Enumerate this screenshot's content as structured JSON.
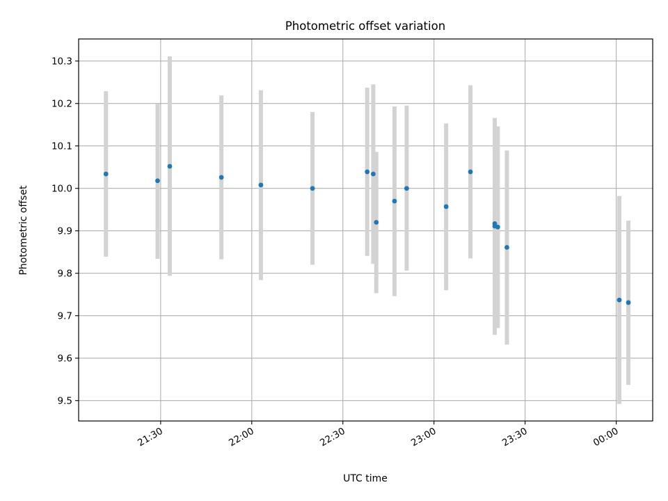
{
  "chart_data": {
    "type": "scatter",
    "title": "Photometric offset variation",
    "xlabel": "UTC time",
    "ylabel": "Photometric offset",
    "grid": true,
    "colors": {
      "points": "#1f77b4",
      "errorbars": "#d3d3d3",
      "grid": "#b0b0b0"
    },
    "x_ticks": [
      "21:30",
      "22:00",
      "22:30",
      "23:00",
      "23:30",
      "00:00"
    ],
    "y_ticks": [
      "9.5",
      "9.6",
      "9.7",
      "9.8",
      "9.9",
      "10.0",
      "10.1",
      "10.2",
      "10.3"
    ],
    "xlim": [
      "21:03",
      "00:12"
    ],
    "ylim": [
      9.452,
      10.352
    ],
    "points": [
      {
        "x": "21:12",
        "y": 10.034,
        "low": 9.839,
        "high": 10.229
      },
      {
        "x": "21:29",
        "y": 10.018,
        "low": 9.834,
        "high": 10.199
      },
      {
        "x": "21:33",
        "y": 10.052,
        "low": 9.794,
        "high": 10.311
      },
      {
        "x": "21:50",
        "y": 10.026,
        "low": 9.833,
        "high": 10.219
      },
      {
        "x": "22:03",
        "y": 10.008,
        "low": 9.784,
        "high": 10.231
      },
      {
        "x": "22:20",
        "y": 10.0,
        "low": 9.82,
        "high": 10.18
      },
      {
        "x": "22:38",
        "y": 10.039,
        "low": 9.841,
        "high": 10.237
      },
      {
        "x": "22:40",
        "y": 10.034,
        "low": 9.822,
        "high": 10.245
      },
      {
        "x": "22:41",
        "y": 9.92,
        "low": 9.753,
        "high": 10.086
      },
      {
        "x": "22:47",
        "y": 9.97,
        "low": 9.746,
        "high": 10.193
      },
      {
        "x": "22:51",
        "y": 10.0,
        "low": 9.806,
        "high": 10.195
      },
      {
        "x": "23:04",
        "y": 9.957,
        "low": 9.76,
        "high": 10.153
      },
      {
        "x": "23:12",
        "y": 10.039,
        "low": 9.835,
        "high": 10.243
      },
      {
        "x": "23:20",
        "y": 9.911,
        "low": 9.655,
        "high": 10.166
      },
      {
        "x": "23:20",
        "y": 9.917,
        "low": 9.685,
        "high": 10.149
      },
      {
        "x": "23:21",
        "y": 9.909,
        "low": 9.671,
        "high": 10.146
      },
      {
        "x": "23:24",
        "y": 9.861,
        "low": 9.632,
        "high": 10.089
      },
      {
        "x": "00:01",
        "y": 9.737,
        "low": 9.492,
        "high": 9.982
      },
      {
        "x": "00:04",
        "y": 9.731,
        "low": 9.537,
        "high": 9.924
      }
    ]
  }
}
